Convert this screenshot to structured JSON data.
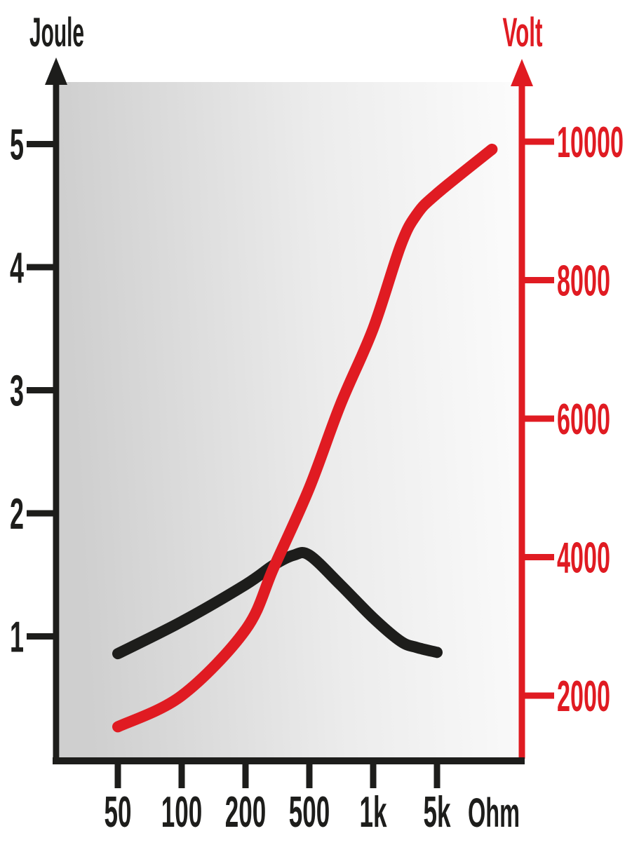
{
  "page": {
    "background": "#ffffff",
    "description": "Defibrillation energy and voltage versus patient impedance chart"
  },
  "chart_data": {
    "type": "line",
    "title": "",
    "x_axis": {
      "unit_label": "Ohm",
      "tick_labels": [
        "50",
        "100",
        "200",
        "500",
        "1k",
        "5k"
      ],
      "tick_values": [
        50,
        100,
        200,
        500,
        1000,
        5000
      ],
      "scale": "logarithmic-categorical",
      "axis_color": "#1d1d1b"
    },
    "y_axis_left": {
      "label": "Joule",
      "tick_labels": [
        "1",
        "2",
        "3",
        "4",
        "5"
      ],
      "tick_values": [
        1,
        2,
        3,
        4,
        5
      ],
      "range": [
        0.3,
        5.6
      ],
      "color": "#1d1d1b"
    },
    "y_axis_right": {
      "label": "Volt",
      "tick_labels": [
        "2000",
        "4000",
        "6000",
        "8000",
        "10000"
      ],
      "tick_values": [
        2000,
        4000,
        6000,
        8000,
        10000
      ],
      "range": [
        1000,
        10400
      ],
      "color": "#e01b22"
    },
    "grid": "off",
    "legend": "none",
    "plot_background": {
      "from": "#cfcfcf",
      "mid": "#ececec",
      "to": "#fcfcfc"
    },
    "series": [
      {
        "name": "Joule",
        "axis": "left",
        "color": "#1d1d1b",
        "stroke_width": 16,
        "points": [
          [
            50,
            0.86
          ],
          [
            100,
            1.12
          ],
          [
            200,
            1.42
          ],
          [
            300,
            1.58
          ],
          [
            400,
            1.66
          ],
          [
            500,
            1.66
          ],
          [
            700,
            1.42
          ],
          [
            1000,
            1.15
          ],
          [
            2000,
            0.96
          ],
          [
            3000,
            0.91
          ],
          [
            5000,
            0.87
          ]
        ]
      },
      {
        "name": "Volt",
        "axis": "right",
        "color": "#e01b22",
        "stroke_width": 16,
        "points": [
          [
            50,
            1550
          ],
          [
            100,
            2000
          ],
          [
            200,
            2950
          ],
          [
            300,
            3850
          ],
          [
            500,
            5000
          ],
          [
            700,
            6200
          ],
          [
            1000,
            7300
          ],
          [
            2000,
            8500
          ],
          [
            3000,
            8950
          ],
          [
            5000,
            9250
          ],
          [
            20000,
            9890
          ]
        ]
      }
    ]
  }
}
